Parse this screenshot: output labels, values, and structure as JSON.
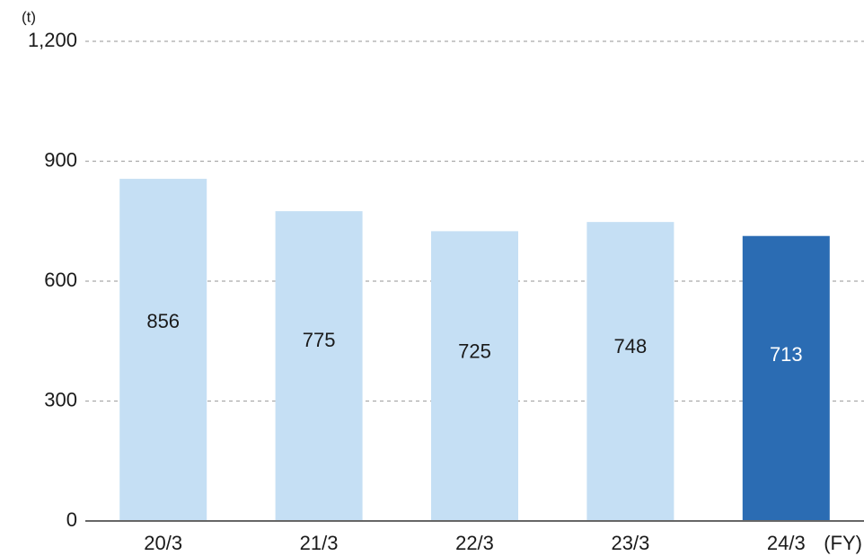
{
  "chart_data": {
    "type": "bar",
    "y_unit": "(t)",
    "x_unit": "(FY)",
    "categories": [
      "20/3",
      "21/3",
      "22/3",
      "23/3",
      "24/3"
    ],
    "values": [
      856,
      775,
      725,
      748,
      713
    ],
    "colors": [
      "#c5dff4",
      "#c5dff4",
      "#c5dff4",
      "#c5dff4",
      "#2b6cb3"
    ],
    "ylim": [
      0,
      1200
    ],
    "yticks": [
      0,
      300,
      600,
      900,
      {
        "value": 1200,
        "label": "1,200"
      }
    ],
    "grid": true
  }
}
